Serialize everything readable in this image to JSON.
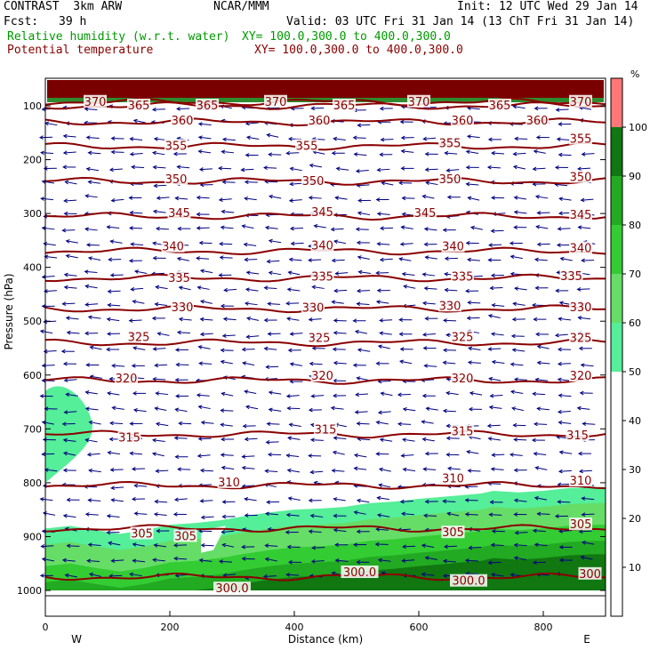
{
  "header": {
    "title_left": "CONTRAST  3km ARW",
    "title_center": "NCAR/MMM",
    "init": "Init: 12 UTC Wed 29 Jan 14",
    "fcst_label": "Fcst:",
    "fcst_value": "39 h",
    "valid": "Valid: 03 UTC Fri 31 Jan 14 (13 ChT Fri 31 Jan 14)",
    "field1_name": "Relative humidity (w.r.t. water)",
    "field1_xy": "XY= 100.0,300.0 to 400.0,300.0",
    "field2_name": "Potential temperature",
    "field2_xy": "XY= 100.0,300.0 to 400.0,300.0",
    "field1_color": "#009900",
    "field2_color": "#8b0000"
  },
  "chart_data": {
    "type": "heatmap",
    "xlabel": "Distance (km)",
    "ylabel": "Pressure (hPa)",
    "xlim": [
      0,
      900
    ],
    "ylim": [
      1050,
      60
    ],
    "x_ticks": [
      0,
      200,
      400,
      600,
      800
    ],
    "y_ticks": [
      100,
      200,
      300,
      400,
      500,
      600,
      700,
      800,
      900,
      1000
    ],
    "x_end_labels": {
      "left": "W",
      "right": "E"
    },
    "colorbar": {
      "unit": "%",
      "levels": [
        10,
        20,
        30,
        40,
        50,
        60,
        70,
        80,
        90,
        100
      ],
      "bands": [
        {
          "from": 0,
          "to": 50,
          "color": "#ffffff"
        },
        {
          "from": 50,
          "to": 60,
          "color": "#55ee99"
        },
        {
          "from": 60,
          "to": 70,
          "color": "#66dd66"
        },
        {
          "from": 70,
          "to": 80,
          "color": "#33cc33"
        },
        {
          "from": 80,
          "to": 90,
          "color": "#22aa22"
        },
        {
          "from": 90,
          "to": 100,
          "color": "#117711"
        },
        {
          "from": 100,
          "to": 110,
          "color": "#ff7777"
        }
      ]
    },
    "theta_contours": [
      {
        "value": 300,
        "pressure": 975,
        "labels": "300.0"
      },
      {
        "value": 305,
        "pressure": 885
      },
      {
        "value": 310,
        "pressure": 805
      },
      {
        "value": 315,
        "pressure": 710
      },
      {
        "value": 320,
        "pressure": 610
      },
      {
        "value": 325,
        "pressure": 540
      },
      {
        "value": 330,
        "pressure": 477
      },
      {
        "value": 335,
        "pressure": 420
      },
      {
        "value": 340,
        "pressure": 370
      },
      {
        "value": 345,
        "pressure": 305
      },
      {
        "value": 350,
        "pressure": 240
      },
      {
        "value": 355,
        "pressure": 175
      },
      {
        "value": 360,
        "pressure": 130
      },
      {
        "value": 365,
        "pressure": 100
      },
      {
        "value": 370,
        "pressure": 93
      }
    ],
    "contour_labels": [
      {
        "text": "370",
        "x": 80,
        "p": 93
      },
      {
        "text": "365",
        "x": 150,
        "p": 100
      },
      {
        "text": "365",
        "x": 260,
        "p": 100
      },
      {
        "text": "370",
        "x": 370,
        "p": 93
      },
      {
        "text": "365",
        "x": 480,
        "p": 100
      },
      {
        "text": "370",
        "x": 600,
        "p": 93
      },
      {
        "text": "365",
        "x": 730,
        "p": 100
      },
      {
        "text": "370",
        "x": 860,
        "p": 93
      },
      {
        "text": "360",
        "x": 220,
        "p": 128
      },
      {
        "text": "360",
        "x": 440,
        "p": 128
      },
      {
        "text": "360",
        "x": 670,
        "p": 128
      },
      {
        "text": "360",
        "x": 790,
        "p": 128
      },
      {
        "text": "355",
        "x": 210,
        "p": 175
      },
      {
        "text": "355",
        "x": 420,
        "p": 175
      },
      {
        "text": "355",
        "x": 650,
        "p": 170
      },
      {
        "text": "355",
        "x": 860,
        "p": 162
      },
      {
        "text": "350",
        "x": 210,
        "p": 237
      },
      {
        "text": "350",
        "x": 430,
        "p": 240
      },
      {
        "text": "350",
        "x": 650,
        "p": 237
      },
      {
        "text": "350",
        "x": 860,
        "p": 233
      },
      {
        "text": "345",
        "x": 215,
        "p": 300
      },
      {
        "text": "345",
        "x": 445,
        "p": 298
      },
      {
        "text": "345",
        "x": 610,
        "p": 300
      },
      {
        "text": "345",
        "x": 860,
        "p": 303
      },
      {
        "text": "340",
        "x": 205,
        "p": 362
      },
      {
        "text": "340",
        "x": 445,
        "p": 360
      },
      {
        "text": "340",
        "x": 655,
        "p": 362
      },
      {
        "text": "340",
        "x": 860,
        "p": 365
      },
      {
        "text": "335",
        "x": 215,
        "p": 420
      },
      {
        "text": "335",
        "x": 445,
        "p": 418
      },
      {
        "text": "335",
        "x": 670,
        "p": 418
      },
      {
        "text": "335",
        "x": 845,
        "p": 417
      },
      {
        "text": "330",
        "x": 220,
        "p": 475
      },
      {
        "text": "330",
        "x": 430,
        "p": 476
      },
      {
        "text": "330",
        "x": 650,
        "p": 472
      },
      {
        "text": "330",
        "x": 860,
        "p": 475
      },
      {
        "text": "325",
        "x": 150,
        "p": 530
      },
      {
        "text": "325",
        "x": 440,
        "p": 532
      },
      {
        "text": "325",
        "x": 670,
        "p": 530
      },
      {
        "text": "325",
        "x": 860,
        "p": 532
      },
      {
        "text": "320",
        "x": 130,
        "p": 607
      },
      {
        "text": "320",
        "x": 445,
        "p": 602
      },
      {
        "text": "320",
        "x": 670,
        "p": 607
      },
      {
        "text": "320",
        "x": 860,
        "p": 602
      },
      {
        "text": "315",
        "x": 135,
        "p": 717
      },
      {
        "text": "315",
        "x": 450,
        "p": 702
      },
      {
        "text": "315",
        "x": 670,
        "p": 705
      },
      {
        "text": "315",
        "x": 855,
        "p": 713
      },
      {
        "text": "310",
        "x": 295,
        "p": 800
      },
      {
        "text": "310",
        "x": 655,
        "p": 793
      },
      {
        "text": "310",
        "x": 860,
        "p": 797
      },
      {
        "text": "305",
        "x": 155,
        "p": 895
      },
      {
        "text": "305",
        "x": 225,
        "p": 900
      },
      {
        "text": "305",
        "x": 655,
        "p": 893
      },
      {
        "text": "305",
        "x": 860,
        "p": 878
      },
      {
        "text": "300.0",
        "x": 300,
        "p": 997
      },
      {
        "text": "300.0",
        "x": 505,
        "p": 967
      },
      {
        "text": "300.0",
        "x": 680,
        "p": 983
      },
      {
        "text": "300",
        "x": 875,
        "p": 970
      }
    ]
  }
}
